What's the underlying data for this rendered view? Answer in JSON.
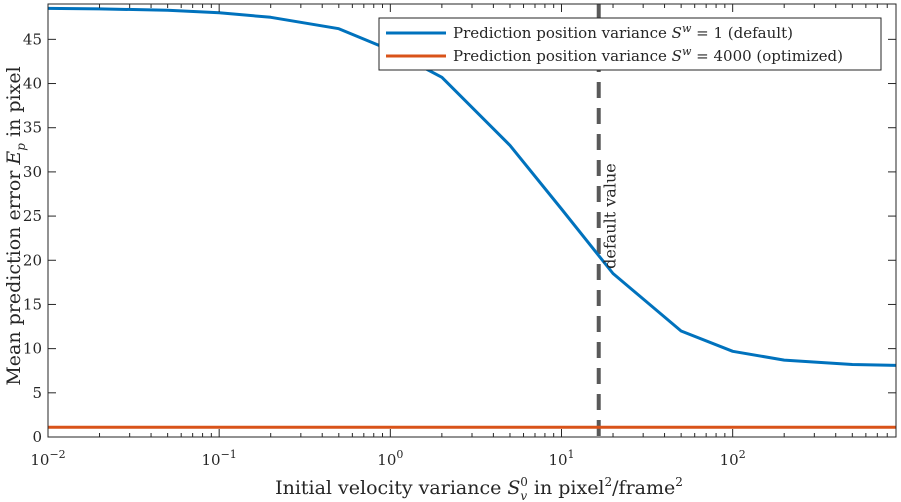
{
  "chart_data": {
    "type": "line",
    "xscale": "log",
    "xlim": [
      0.01,
      900
    ],
    "ylim": [
      0,
      49
    ],
    "grid": false,
    "legend_position": "top-right",
    "xlabel": {
      "pre": "Initial velocity variance ",
      "mid": " in pixel",
      "post": "/frame"
    },
    "ylabel": {
      "pre": "Mean prediction error ",
      "post": " in pixel"
    },
    "x_ticks": [
      {
        "value": 0.01,
        "base": "10",
        "exp": "−2"
      },
      {
        "value": 0.1,
        "base": "10",
        "exp": "−1"
      },
      {
        "value": 1,
        "base": "10",
        "exp": "0"
      },
      {
        "value": 10,
        "base": "10",
        "exp": "1"
      },
      {
        "value": 100,
        "base": "10",
        "exp": "2"
      }
    ],
    "y_ticks": [
      0,
      5,
      10,
      15,
      20,
      25,
      30,
      35,
      40,
      45
    ],
    "series": [
      {
        "name_pre": "Prediction position variance ",
        "name_eq": " = 1 (default)",
        "color": "#0072BD",
        "x": [
          0.01,
          0.02,
          0.05,
          0.1,
          0.2,
          0.5,
          1,
          2,
          5,
          10,
          20,
          50,
          100,
          200,
          500,
          900
        ],
        "y": [
          48.5,
          48.45,
          48.3,
          48.0,
          47.5,
          46.2,
          43.8,
          40.7,
          33.0,
          25.8,
          18.5,
          12.0,
          9.7,
          8.7,
          8.2,
          8.1
        ]
      },
      {
        "name_pre": "Prediction position variance ",
        "name_eq": " = 4000 (optimized)",
        "color": "#D95319",
        "x": [
          0.01,
          900
        ],
        "y": [
          1.1,
          1.1
        ]
      }
    ],
    "vline": {
      "x": 16.5,
      "color": "#595959",
      "label": "default value"
    }
  }
}
